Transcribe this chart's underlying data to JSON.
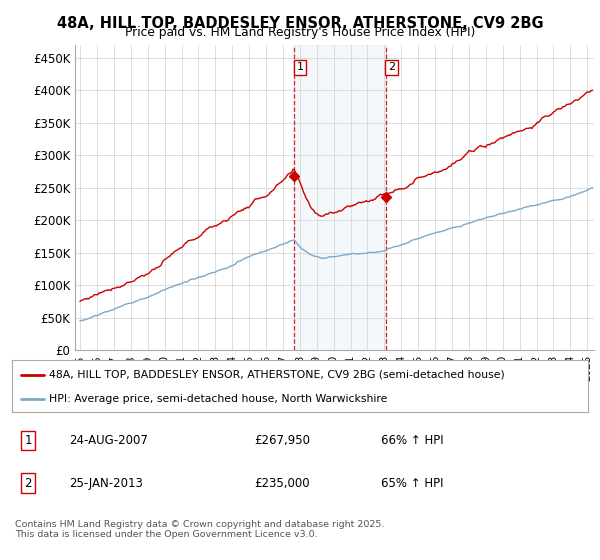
{
  "title": "48A, HILL TOP, BADDESLEY ENSOR, ATHERSTONE, CV9 2BG",
  "subtitle": "Price paid vs. HM Land Registry's House Price Index (HPI)",
  "ylabel_ticks": [
    "£0",
    "£50K",
    "£100K",
    "£150K",
    "£200K",
    "£250K",
    "£300K",
    "£350K",
    "£400K",
    "£450K"
  ],
  "ytick_values": [
    0,
    50000,
    100000,
    150000,
    200000,
    250000,
    300000,
    350000,
    400000,
    450000
  ],
  "ylim": [
    0,
    470000
  ],
  "xlim_start": 1994.7,
  "xlim_end": 2025.4,
  "red_line_color": "#cc0000",
  "blue_line_color": "#7aaacc",
  "marker1_x": 2007.65,
  "marker2_x": 2013.08,
  "marker1_label": "1",
  "marker2_label": "2",
  "shaded_region_alpha": 0.13,
  "shaded_color": "#b8cce4",
  "legend_red": "48A, HILL TOP, BADDESLEY ENSOR, ATHERSTONE, CV9 2BG (semi-detached house)",
  "legend_blue": "HPI: Average price, semi-detached house, North Warwickshire",
  "table_row1": [
    "1",
    "24-AUG-2007",
    "£267,950",
    "66% ↑ HPI"
  ],
  "table_row2": [
    "2",
    "25-JAN-2013",
    "£235,000",
    "65% ↑ HPI"
  ],
  "footer": "Contains HM Land Registry data © Crown copyright and database right 2025.\nThis data is licensed under the Open Government Licence v3.0.",
  "background_color": "#ffffff",
  "grid_color": "#cccccc",
  "sale1_price": 267950,
  "sale2_price": 235000,
  "sale1_year": 2007.65,
  "sale2_year": 2013.08
}
